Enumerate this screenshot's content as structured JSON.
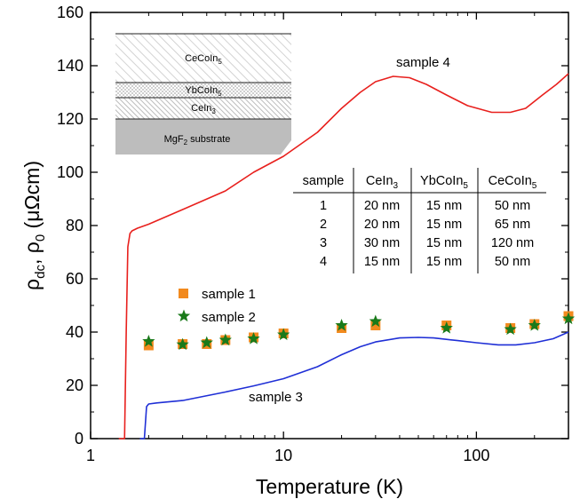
{
  "chart_data": {
    "type": "line",
    "xscale": "log",
    "xlim": [
      1,
      300
    ],
    "ylim": [
      0,
      160
    ],
    "x_ticks": [
      "1",
      "10",
      "100"
    ],
    "y_ticks": [
      "0",
      "20",
      "40",
      "60",
      "80",
      "100",
      "120",
      "140",
      "160"
    ],
    "xlabel": "Temperature (K)",
    "ylabel": {
      "p1": "ρ",
      "s1": "dc",
      "p2": ", ρ",
      "s2": "0",
      "p3": " (μΩcm)"
    },
    "grid": false,
    "colors": {
      "sample4": "#e8201d",
      "sample3": "#1f2fd6",
      "sample1": "#f28a1e",
      "sample2": "#1a7a1a"
    },
    "lines": [
      {
        "name": "sample 4",
        "label": "sample 4",
        "color": "#e8201d",
        "points": [
          [
            1.4,
            0
          ],
          [
            1.5,
            0
          ],
          [
            1.53,
            40
          ],
          [
            1.56,
            72
          ],
          [
            1.6,
            77
          ],
          [
            1.64,
            78
          ],
          [
            1.75,
            79
          ],
          [
            2,
            80.5
          ],
          [
            3,
            86
          ],
          [
            5,
            93
          ],
          [
            7,
            100
          ],
          [
            10,
            106
          ],
          [
            15,
            115
          ],
          [
            20,
            124
          ],
          [
            25,
            130
          ],
          [
            30,
            134
          ],
          [
            37,
            136
          ],
          [
            45,
            135.5
          ],
          [
            55,
            133
          ],
          [
            70,
            129
          ],
          [
            90,
            125
          ],
          [
            120,
            122.5
          ],
          [
            150,
            122.5
          ],
          [
            180,
            124
          ],
          [
            220,
            129
          ],
          [
            260,
            133
          ],
          [
            300,
            137
          ]
        ]
      },
      {
        "name": "sample 3",
        "label": "sample 3",
        "color": "#1f2fd6",
        "points": [
          [
            1.8,
            0
          ],
          [
            1.9,
            0
          ],
          [
            1.95,
            12
          ],
          [
            2,
            13
          ],
          [
            2.2,
            13.4
          ],
          [
            3,
            14.3
          ],
          [
            5,
            17.5
          ],
          [
            7,
            19.8
          ],
          [
            10,
            22.5
          ],
          [
            15,
            27
          ],
          [
            20,
            31.5
          ],
          [
            25,
            34.5
          ],
          [
            30,
            36.3
          ],
          [
            40,
            37.8
          ],
          [
            50,
            38
          ],
          [
            60,
            37.8
          ],
          [
            80,
            36.8
          ],
          [
            100,
            36
          ],
          [
            130,
            35.2
          ],
          [
            160,
            35.2
          ],
          [
            200,
            36
          ],
          [
            250,
            37.5
          ],
          [
            300,
            40
          ]
        ]
      }
    ],
    "series": [
      {
        "name": "sample 1",
        "marker": "square",
        "color": "#f28a1e",
        "x": [
          2,
          3,
          4,
          5,
          7,
          10,
          20,
          30,
          70,
          150,
          200,
          300
        ],
        "values": [
          35,
          35.5,
          35.5,
          37,
          38,
          39.5,
          41.5,
          42.5,
          42.5,
          41.5,
          43,
          46
        ]
      },
      {
        "name": "sample 2",
        "marker": "star",
        "color": "#1a7a1a",
        "x": [
          2,
          3,
          4,
          5,
          7,
          10,
          20,
          30,
          70,
          150,
          200,
          300
        ],
        "values": [
          36.5,
          35.3,
          36,
          37,
          37.5,
          39,
          42.5,
          44,
          41.5,
          41,
          42.5,
          45
        ]
      }
    ],
    "inset_table": {
      "header": [
        {
          "t": "sample",
          "sub": ""
        },
        {
          "t": "CeIn",
          "sub": "3"
        },
        {
          "t": "YbCoIn",
          "sub": "5"
        },
        {
          "t": "CeCoIn",
          "sub": "5"
        }
      ],
      "rows": [
        [
          "1",
          "20 nm",
          "15 nm",
          "50 nm"
        ],
        [
          "2",
          "20 nm",
          "15 nm",
          "65 nm"
        ],
        [
          "3",
          "30 nm",
          "15 nm",
          "120 nm"
        ],
        [
          "4",
          "15 nm",
          "15 nm",
          "50 nm"
        ]
      ]
    },
    "inset_layers": [
      {
        "t": "CeCoIn",
        "sub": "5",
        "tail": ""
      },
      {
        "t": "YbCoIn",
        "sub": "5",
        "tail": ""
      },
      {
        "t": "CeIn",
        "sub": "3",
        "tail": ""
      },
      {
        "t": "MgF",
        "sub": "2",
        "tail": " substrate"
      }
    ]
  }
}
